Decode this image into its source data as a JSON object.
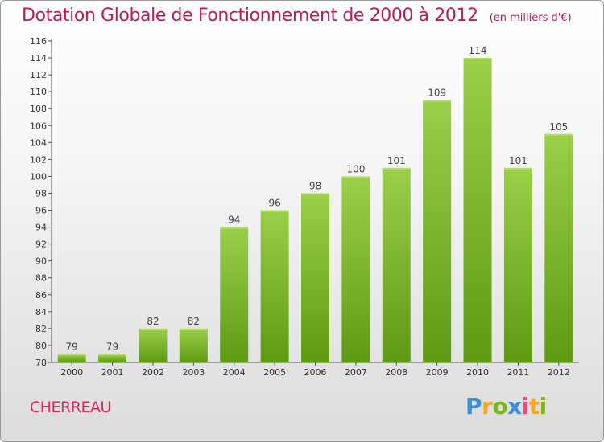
{
  "header": {
    "title": "Dotation Globale de Fonctionnement de 2000 à 2012",
    "unit": "(en milliers d'€)"
  },
  "commune": "CHERREAU",
  "logo": {
    "letters": [
      "P",
      "r",
      "o",
      "x",
      "i",
      "t",
      "i"
    ]
  },
  "colors": {
    "bar_top": "#9ccf4a",
    "bar_bottom": "#5e9a12",
    "title": "#c2185b"
  },
  "chart_data": {
    "type": "bar",
    "title": "Dotation Globale de Fonctionnement de 2000 à 2012",
    "subtitle": "(en milliers d'€)",
    "categories": [
      "2000",
      "2001",
      "2002",
      "2003",
      "2004",
      "2005",
      "2006",
      "2007",
      "2008",
      "2009",
      "2010",
      "2011",
      "2012"
    ],
    "values": [
      79,
      79,
      82,
      82,
      94,
      96,
      98,
      100,
      101,
      109,
      114,
      101,
      105
    ],
    "ylim": [
      78,
      116
    ],
    "yticks": [
      78,
      80,
      82,
      84,
      86,
      88,
      90,
      92,
      94,
      96,
      98,
      100,
      102,
      104,
      106,
      108,
      110,
      112,
      114,
      116
    ],
    "grid": false,
    "xlabel": "",
    "ylabel": ""
  }
}
